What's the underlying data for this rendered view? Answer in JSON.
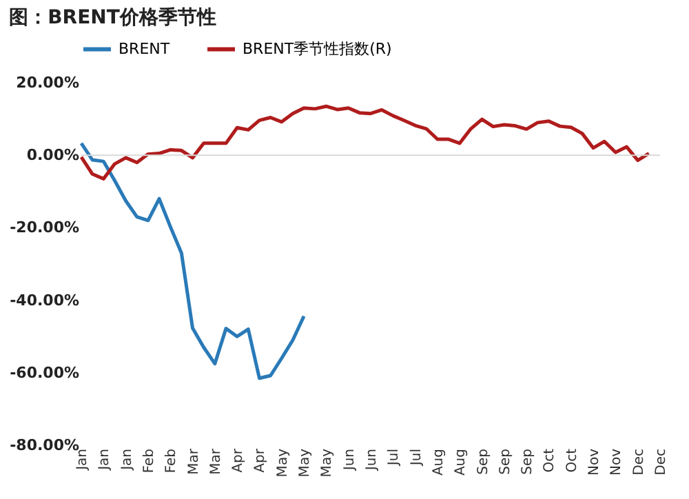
{
  "chart_data": {
    "type": "line",
    "title": "图：BRENT价格季节性",
    "categories": [
      "Jan",
      null,
      "Jan",
      null,
      "Jan",
      null,
      "Feb",
      null,
      "Feb",
      null,
      "Mar",
      null,
      "Mar",
      null,
      "Apr",
      null,
      "Apr",
      null,
      "May",
      null,
      "May",
      null,
      "May",
      null,
      "Jun",
      null,
      "Jun",
      null,
      "Jul",
      null,
      "Jul",
      null,
      "Aug",
      null,
      "Aug",
      null,
      "Sep",
      null,
      "Sep",
      null,
      "Sep",
      null,
      "Oct",
      null,
      "Oct",
      null,
      "Nov",
      null,
      "Nov",
      null,
      "Dec",
      null,
      "Dec"
    ],
    "ylim": [
      -80,
      20
    ],
    "yticks": [
      {
        "value": -80,
        "label": "-80.00%"
      },
      {
        "value": -60,
        "label": "-60.00%"
      },
      {
        "value": -40,
        "label": "-40.00%"
      },
      {
        "value": -20,
        "label": "-20.00%"
      },
      {
        "value": 0,
        "label": "0.00%"
      },
      {
        "value": 20,
        "label": "20.00%"
      }
    ],
    "ref_lines": [
      {
        "axis": "y",
        "value": 0,
        "color": "#d9d9d9"
      }
    ],
    "legend": "top",
    "grid": false,
    "series": [
      {
        "name": "BRENT",
        "color": "#2a7ab8",
        "values": [
          3.3,
          -1.3,
          -1.7,
          -7,
          -12.6,
          -17,
          -18,
          -12,
          -19.7,
          -27,
          -47.7,
          -53,
          -57.5,
          -47.8,
          -50,
          -48,
          -61.5,
          -60.8,
          -56,
          -51,
          -44.4,
          null,
          null,
          null,
          null,
          null,
          null,
          null,
          null,
          null,
          null,
          null,
          null,
          null,
          null,
          null,
          null,
          null,
          null,
          null,
          null,
          null,
          null,
          null,
          null,
          null,
          null,
          null,
          null,
          null,
          null,
          null,
          null
        ]
      },
      {
        "name": "BRENT季节性指数(R)",
        "color": "#b01c1c",
        "values": [
          -0.5,
          -5.2,
          -6.5,
          -2.4,
          -0.7,
          -2,
          0.3,
          0.5,
          1.5,
          1.3,
          -0.7,
          3.3,
          3.3,
          3.3,
          7.6,
          7,
          9.6,
          10.4,
          9.2,
          11.5,
          13,
          12.8,
          13.5,
          12.6,
          13,
          11.7,
          11.5,
          12.5,
          10.9,
          9.6,
          8.2,
          7.3,
          4.4,
          4.4,
          3.3,
          7.3,
          9.9,
          7.9,
          8.4,
          8.1,
          7.2,
          9,
          9.4,
          8,
          7.7,
          6,
          2,
          3.8,
          0.8,
          2.3,
          -1.4,
          0.5,
          null
        ]
      }
    ]
  }
}
